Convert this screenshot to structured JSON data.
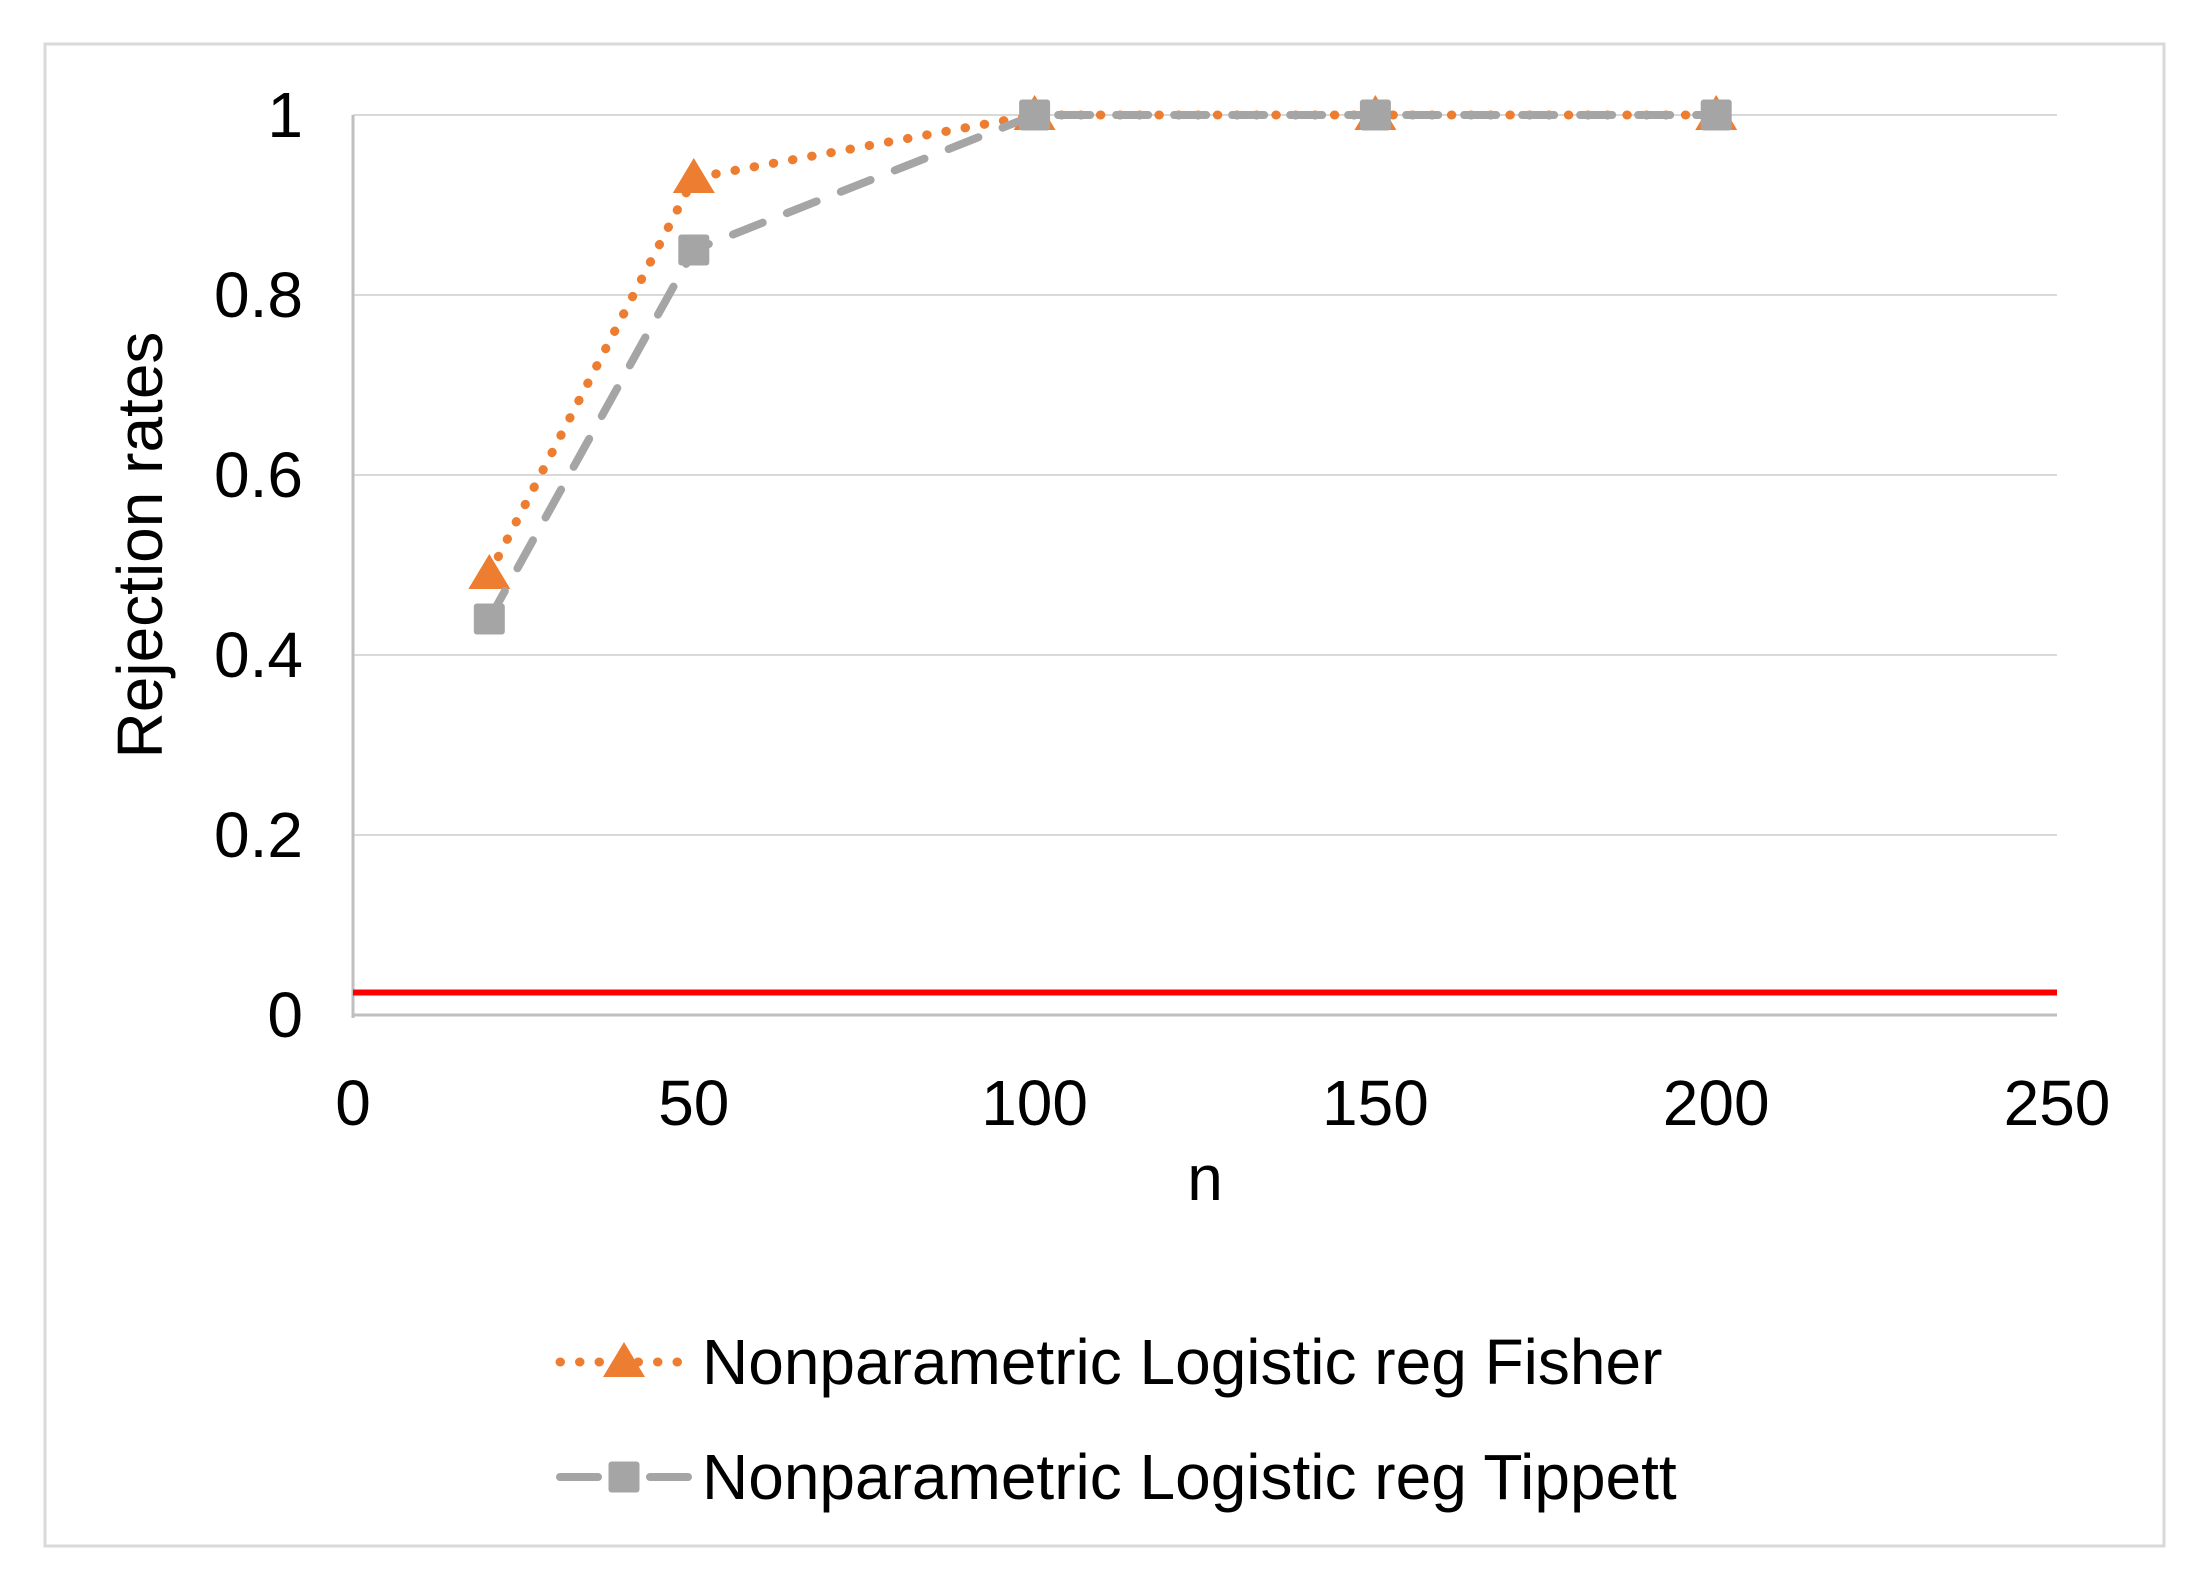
{
  "figure": {
    "background": "#ffffff",
    "border_color": "#d9d9d9",
    "gridline_color": "#d9d9d9",
    "axis_line_color": "#bfbfbf",
    "text_color": "#000000"
  },
  "chart_data": {
    "type": "line",
    "title": "",
    "xlabel": "n",
    "ylabel": "Rejection rates",
    "xlim": [
      0,
      250
    ],
    "ylim": [
      0,
      1
    ],
    "xticks": [
      0,
      50,
      100,
      150,
      200,
      250
    ],
    "yticks": [
      0,
      0.2,
      0.4,
      0.6,
      0.8,
      1
    ],
    "ytick_labels": [
      "0",
      "0.2",
      "0.4",
      "0.6",
      "0.8",
      "1"
    ],
    "grid": "horizontal",
    "legend_position": "bottom",
    "x": [
      20,
      50,
      100,
      150,
      200
    ],
    "series": [
      {
        "name": "Nonparametric Logistic reg Fisher",
        "values": [
          0.49,
          0.93,
          1,
          1,
          1
        ],
        "color": "#ED7D31",
        "line_style": "dotted",
        "marker": "triangle"
      },
      {
        "name": "Nonparametric Logistic reg Tippett",
        "values": [
          0.44,
          0.85,
          1,
          1,
          1
        ],
        "color": "#A5A5A5",
        "line_style": "dashed",
        "marker": "square"
      }
    ],
    "reference_line": {
      "value": 0.025,
      "color": "#FF0000"
    }
  }
}
